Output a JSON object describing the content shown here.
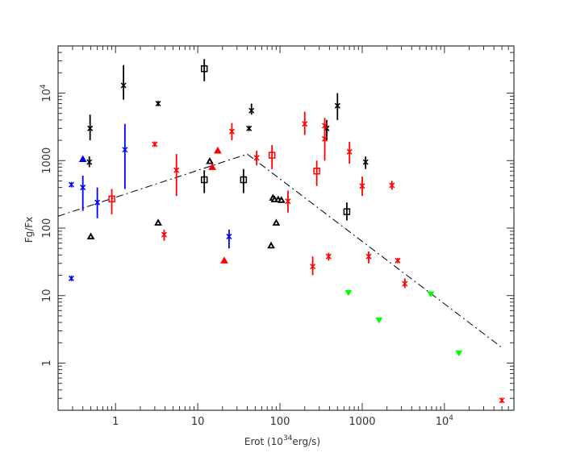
{
  "chart_data": {
    "type": "scatter",
    "xscale": "log",
    "yscale": "log",
    "xlim": [
      0.2,
      70000
    ],
    "ylim": [
      0.2,
      50000
    ],
    "xlabel": "Erot (10",
    "xlabel_exp": "34",
    "xlabel_tail": "erg/s)",
    "ylabel": "Fg/Fx",
    "x_ticks": [
      {
        "value": 1,
        "label": "1"
      },
      {
        "value": 10,
        "label": "10"
      },
      {
        "value": 100,
        "label": "100"
      },
      {
        "value": 1000,
        "label": "1000"
      },
      {
        "value": 10000,
        "label": "10",
        "exp": "4"
      }
    ],
    "y_ticks": [
      {
        "value": 1,
        "label": "1"
      },
      {
        "value": 10,
        "label": "10"
      },
      {
        "value": 100,
        "label": "100"
      },
      {
        "value": 1000,
        "label": "1000"
      },
      {
        "value": 10000,
        "label": "10",
        "exp": "4"
      }
    ],
    "colors": {
      "black": "#000000",
      "red": "#ff0000",
      "blue": "#0000ff",
      "green": "#00ff00",
      "line": "#000000"
    },
    "trend_line": {
      "x": [
        0.2,
        40,
        50000
      ],
      "y": [
        150,
        1250,
        1.7
      ]
    },
    "series": [
      {
        "color": "black",
        "points": [
          {
            "x": 0.49,
            "y": 3000,
            "lo": 2000,
            "hi": 4800,
            "m": "star"
          },
          {
            "x": 0.48,
            "y": 950,
            "lo": 800,
            "hi": 1150,
            "m": "star"
          },
          {
            "x": 1.25,
            "y": 13000,
            "lo": 8000,
            "hi": 26000,
            "m": "star"
          },
          {
            "x": 3.3,
            "y": 7000,
            "m": "star"
          },
          {
            "x": 45,
            "y": 5500,
            "lo": 4800,
            "hi": 7000,
            "m": "star"
          },
          {
            "x": 42,
            "y": 3000,
            "lo": 2800,
            "hi": 3200,
            "m": "star"
          },
          {
            "x": 370,
            "y": 3000,
            "lo": 2000,
            "hi": 4000,
            "m": "star"
          },
          {
            "x": 500,
            "y": 6500,
            "lo": 4000,
            "hi": 10000,
            "m": "star"
          },
          {
            "x": 1100,
            "y": 950,
            "lo": 750,
            "hi": 1150,
            "m": "star"
          },
          {
            "x": 12,
            "y": 23000,
            "lo": 15000,
            "hi": 32000,
            "m": "square"
          },
          {
            "x": 12,
            "y": 520,
            "lo": 330,
            "hi": 720,
            "m": "square"
          },
          {
            "x": 36,
            "y": 520,
            "lo": 330,
            "hi": 750,
            "m": "square"
          },
          {
            "x": 650,
            "y": 175,
            "lo": 130,
            "hi": 240,
            "m": "square"
          },
          {
            "x": 0.5,
            "y": 75,
            "m": "triangle"
          },
          {
            "x": 3.3,
            "y": 120,
            "m": "triangle"
          },
          {
            "x": 14,
            "y": 980,
            "m": "triangle"
          },
          {
            "x": 78,
            "y": 55,
            "m": "triangle"
          },
          {
            "x": 82,
            "y": 280,
            "m": "triangle"
          },
          {
            "x": 86,
            "y": 265,
            "m": "triangle"
          },
          {
            "x": 90,
            "y": 120,
            "m": "triangle"
          },
          {
            "x": 95,
            "y": 265,
            "m": "triangle"
          },
          {
            "x": 104,
            "y": 260,
            "m": "triangle"
          }
        ]
      },
      {
        "color": "red",
        "points": [
          {
            "x": 3.0,
            "y": 1750,
            "m": "star"
          },
          {
            "x": 3.9,
            "y": 80,
            "lo": 65,
            "hi": 95,
            "m": "star"
          },
          {
            "x": 5.5,
            "y": 720,
            "lo": 300,
            "hi": 1250,
            "m": "star"
          },
          {
            "x": 26,
            "y": 2700,
            "lo": 2000,
            "hi": 3600,
            "m": "star"
          },
          {
            "x": 52,
            "y": 1100,
            "lo": 850,
            "hi": 1400,
            "m": "star"
          },
          {
            "x": 125,
            "y": 250,
            "lo": 170,
            "hi": 360,
            "m": "star"
          },
          {
            "x": 200,
            "y": 3500,
            "lo": 2400,
            "hi": 5300,
            "m": "star"
          },
          {
            "x": 250,
            "y": 27,
            "lo": 20,
            "hi": 38,
            "m": "star"
          },
          {
            "x": 350,
            "y": 3300,
            "lo": 2400,
            "hi": 4300,
            "m": "star"
          },
          {
            "x": 350,
            "y": 2100,
            "lo": 1000,
            "hi": 3200,
            "m": "star"
          },
          {
            "x": 390,
            "y": 38,
            "lo": 33,
            "hi": 43,
            "m": "star"
          },
          {
            "x": 700,
            "y": 1350,
            "lo": 900,
            "hi": 1900,
            "m": "star"
          },
          {
            "x": 1000,
            "y": 420,
            "lo": 300,
            "hi": 580,
            "m": "star"
          },
          {
            "x": 1200,
            "y": 38,
            "lo": 30,
            "hi": 45,
            "m": "star"
          },
          {
            "x": 2300,
            "y": 430,
            "lo": 370,
            "hi": 500,
            "m": "star"
          },
          {
            "x": 2700,
            "y": 33,
            "m": "star"
          },
          {
            "x": 3300,
            "y": 15,
            "lo": 13,
            "hi": 18,
            "m": "star"
          },
          {
            "x": 50000,
            "y": 0.28,
            "m": "star"
          },
          {
            "x": 0.9,
            "y": 270,
            "lo": 160,
            "hi": 380,
            "m": "square"
          },
          {
            "x": 80,
            "y": 1200,
            "lo": 750,
            "hi": 1700,
            "m": "square"
          },
          {
            "x": 280,
            "y": 700,
            "lo": 420,
            "hi": 1000,
            "m": "square"
          },
          {
            "x": 15,
            "y": 800,
            "m": "triangle"
          },
          {
            "x": 17.5,
            "y": 1400,
            "m": "triangle"
          },
          {
            "x": 21,
            "y": 33,
            "m": "triangle"
          }
        ]
      },
      {
        "color": "blue",
        "points": [
          {
            "x": 0.29,
            "y": 18,
            "m": "star"
          },
          {
            "x": 0.29,
            "y": 440,
            "m": "star"
          },
          {
            "x": 0.4,
            "y": 400,
            "lo": 180,
            "hi": 600,
            "m": "star"
          },
          {
            "x": 0.6,
            "y": 240,
            "lo": 140,
            "hi": 400,
            "m": "star"
          },
          {
            "x": 1.3,
            "y": 1450,
            "lo": 380,
            "hi": 3500,
            "m": "star"
          },
          {
            "x": 24,
            "y": 75,
            "lo": 50,
            "hi": 95,
            "m": "star"
          },
          {
            "x": 0.4,
            "y": 1050,
            "m": "triangle"
          }
        ]
      },
      {
        "color": "green",
        "points": [
          {
            "x": 680,
            "y": 11,
            "m": "down"
          },
          {
            "x": 1600,
            "y": 4.3,
            "m": "down"
          },
          {
            "x": 6800,
            "y": 10.5,
            "m": "down"
          },
          {
            "x": 15000,
            "y": 1.4,
            "m": "down"
          }
        ]
      }
    ]
  }
}
